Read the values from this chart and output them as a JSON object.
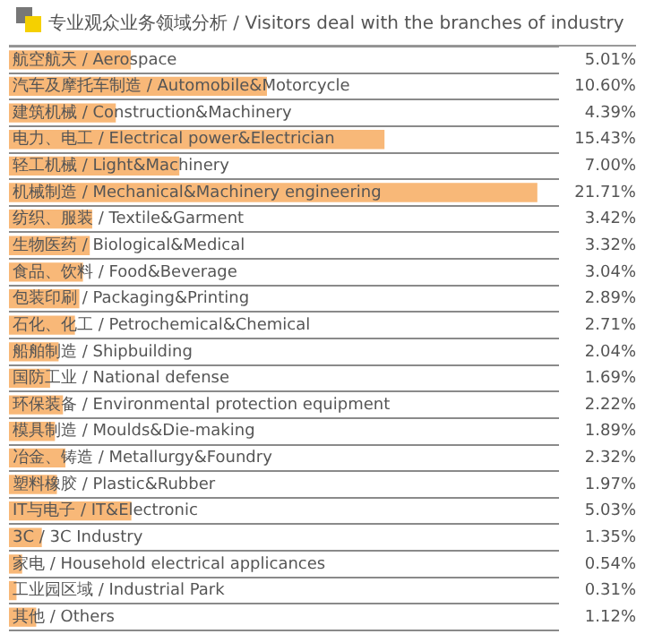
{
  "chart_data": {
    "type": "bar",
    "orientation": "horizontal",
    "title": "专业观众业务领域分析 / Visitors deal with the branches of industry",
    "categories": [
      "航空航天 / Aerospace",
      "汽车及摩托车制造 / Automobile&Motorcycle",
      "建筑机械 / Construction&Machinery",
      "电力、电工 / Electrical power&Electrician",
      "轻工机械 / Light&Machinery",
      "机械制造 / Mechanical&Machinery engineering",
      "纺织、服装 / Textile&Garment",
      "生物医药 / Biological&Medical",
      "食品、饮料 / Food&Beverage",
      "包装印刷 / Packaging&Printing",
      "石化、化工 / Petrochemical&Chemical",
      "船舶制造 / Shipbuilding",
      "国防工业 / National defense",
      "环保装备 / Environmental protection equipment",
      "模具制造 / Moulds&Die-making",
      "冶金、铸造 / Metallurgy&Foundry",
      "塑料橡胶 / Plastic&Rubber",
      "IT与电子 / IT&Electronic",
      "3C / 3C Industry",
      "家电 / Household electrical applicances",
      "工业园区域 / Industrial Park",
      "其他 / Others"
    ],
    "values": [
      5.01,
      10.6,
      4.39,
      15.43,
      7.0,
      21.71,
      3.42,
      3.32,
      3.04,
      2.89,
      2.71,
      2.04,
      1.69,
      2.22,
      1.89,
      2.32,
      1.97,
      5.03,
      1.35,
      0.54,
      0.31,
      1.12
    ],
    "value_labels": [
      "5.01%",
      "10.60%",
      "4.39%",
      "15.43%",
      "7.00%",
      "21.71%",
      "3.42%",
      "3.32%",
      "3.04%",
      "2.89%",
      "2.71%",
      "2.04%",
      "1.69%",
      "2.22%",
      "1.89%",
      "2.32%",
      "1.97%",
      "5.03%",
      "1.35%",
      "0.54%",
      "0.31%",
      "1.12%"
    ],
    "color": "#f8b878",
    "xlim": [
      0,
      22.6
    ],
    "grid": "y",
    "legend": false
  }
}
